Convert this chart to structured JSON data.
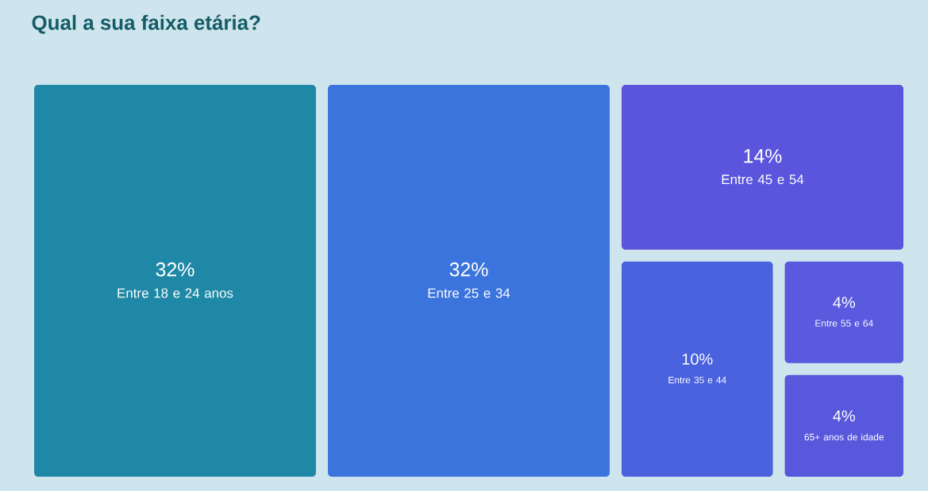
{
  "chart_data": {
    "type": "other",
    "title": "Qual a sua faixa etária?",
    "categories": [
      "Entre 18 e 24 anos",
      "Entre 25 e 34",
      "Entre 45 e 54",
      "Entre 35 e 44",
      "Entre 55 e 64",
      "65+ anos de idade"
    ],
    "values": [
      32,
      32,
      14,
      10,
      4,
      4
    ],
    "value_labels": [
      "32%",
      "32%",
      "14%",
      "10%",
      "4%",
      "4%"
    ],
    "colors": [
      "#1f88a6",
      "#3a74dc",
      "#5a55dc",
      "#4a62de",
      "#5a5ade",
      "#5858dc"
    ]
  }
}
